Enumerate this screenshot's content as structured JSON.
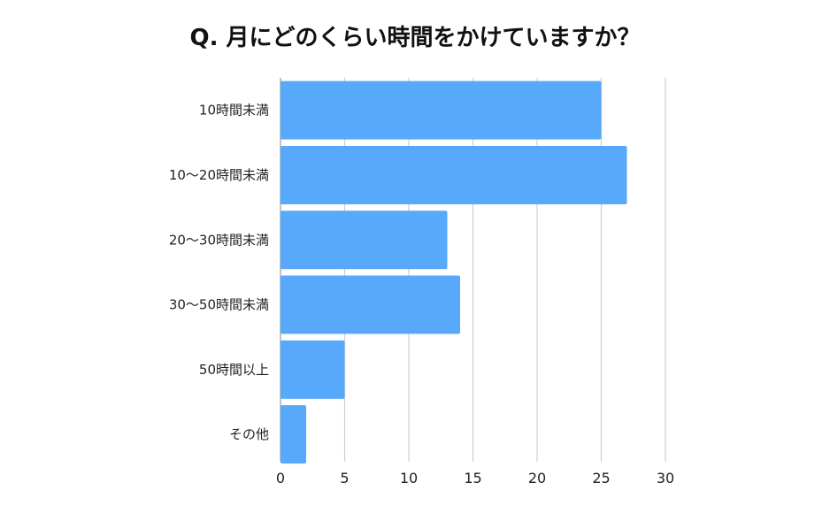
{
  "chart_data": {
    "type": "bar",
    "orientation": "horizontal",
    "title": "Q. 月にどのくらい時間をかけていますか？",
    "xlabel": "",
    "ylabel": "",
    "categories": [
      "10時間未満",
      "10〜20時間未満",
      "20〜30時間未満",
      "30〜50時間未満",
      "50時間以上",
      "その他"
    ],
    "values": [
      25,
      27,
      13,
      14,
      5,
      2
    ],
    "xlim": [
      0,
      30
    ],
    "xticks": [
      "0",
      "5",
      "10",
      "15",
      "20",
      "25",
      "30"
    ],
    "grid": true,
    "legend": "none",
    "bar_color": "#58a8fb"
  }
}
